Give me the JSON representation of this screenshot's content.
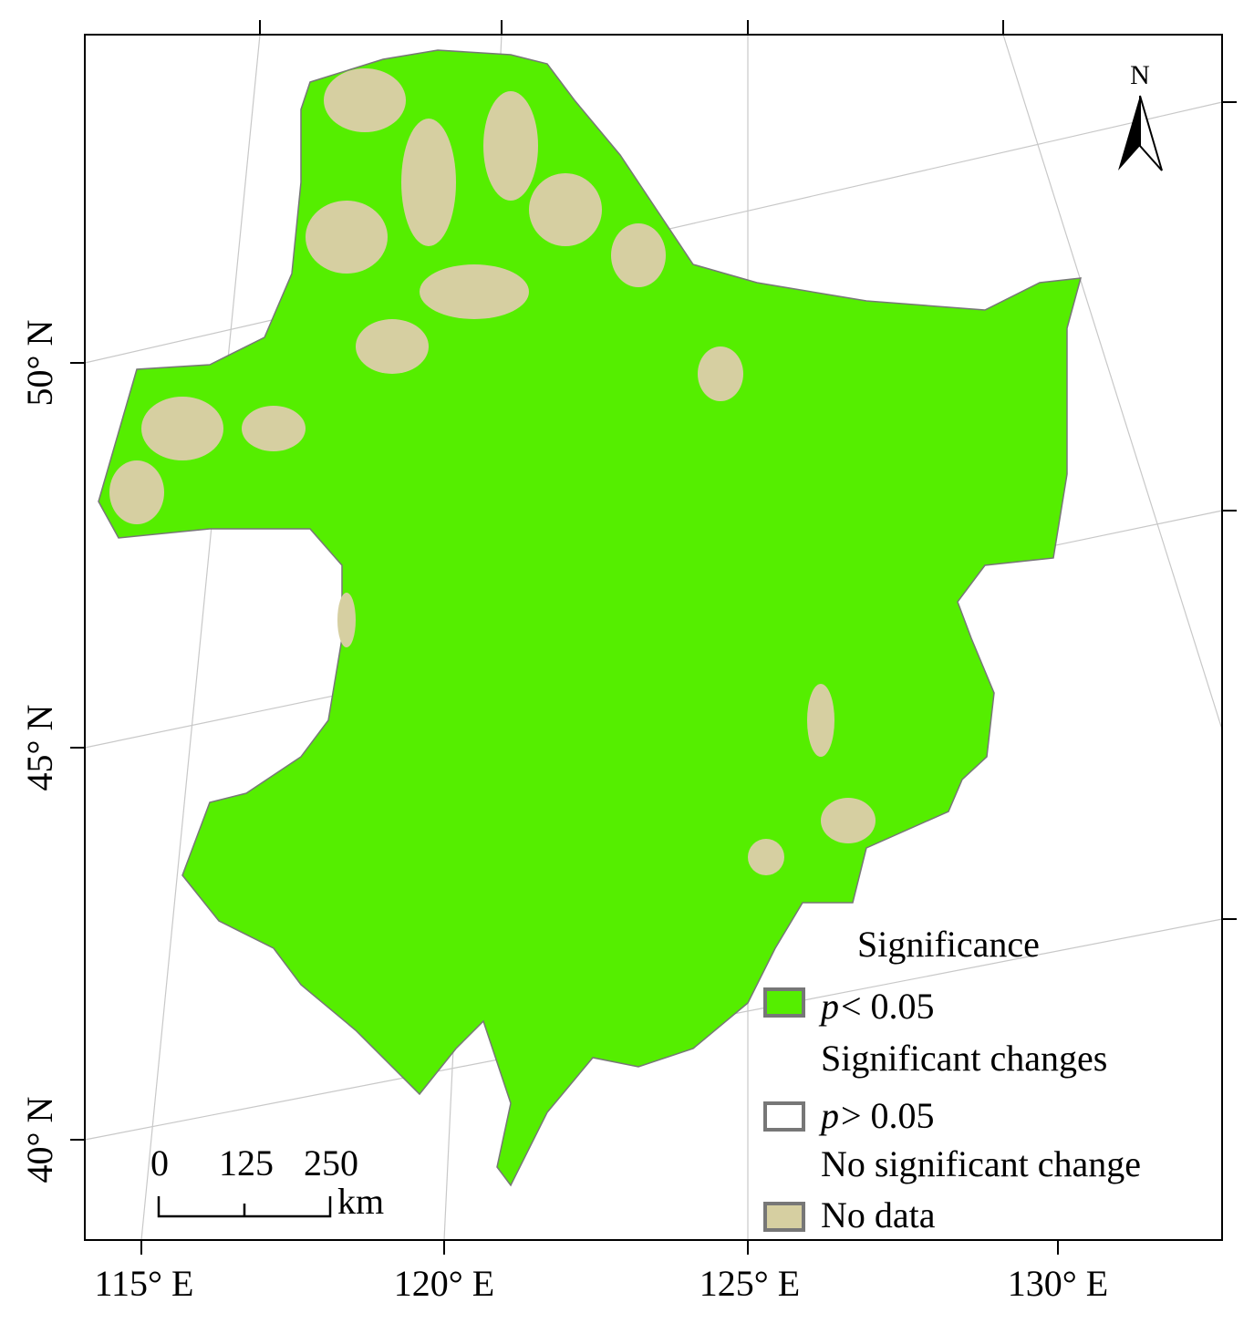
{
  "map": {
    "lon_labels": [
      "115° E",
      "120° E",
      "125° E",
      "130° E"
    ],
    "lat_labels": [
      "50° N",
      "45° N",
      "40° N"
    ],
    "north": "N",
    "scale_bar": {
      "labels": [
        "0",
        "125",
        "250"
      ],
      "unit": "km"
    },
    "legend": {
      "title": "Significance",
      "items": [
        {
          "symbol": "p",
          "condition": "< 0.05",
          "description": "Significant changes"
        },
        {
          "symbol": "p",
          "condition": "> 0.05",
          "description": "No significant change"
        },
        {
          "description": "No data"
        }
      ]
    }
  }
}
